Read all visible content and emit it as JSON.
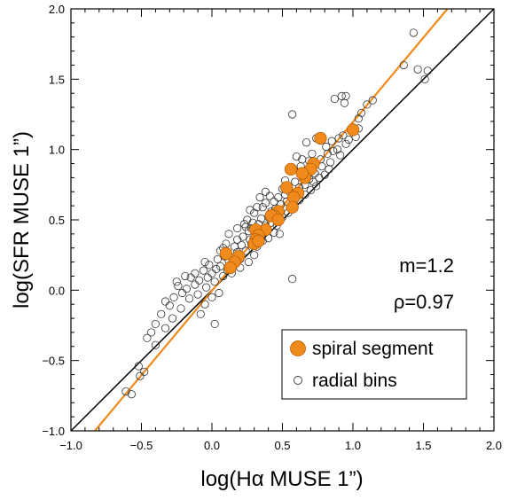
{
  "chart_data": {
    "type": "scatter",
    "xlabel": "log(Hα MUSE 1”)",
    "ylabel": "log(SFR MUSE 1”)",
    "xlim": [
      -1.0,
      2.0
    ],
    "ylim": [
      -1.0,
      2.0
    ],
    "x_ticks": [
      "−1.0",
      "−0.5",
      "0.0",
      "0.5",
      "1.0",
      "1.5",
      "2.0"
    ],
    "y_ticks": [
      "−1.0",
      "−0.5",
      "0.0",
      "0.5",
      "1.0",
      "1.5",
      "2.0"
    ],
    "annotations": {
      "slope": "m=1.2",
      "correlation": "ρ=0.97"
    },
    "legend": {
      "position": "bottom-right",
      "spiral_label": "spiral segment",
      "radial_label": "radial bins"
    },
    "colors": {
      "spiral": "#f08a1c",
      "fit_line": "#f08a1c",
      "one_to_one": "#000000",
      "radial": "#333333"
    },
    "lines": [
      {
        "kind": "one-to-one",
        "x": [
          -1.0,
          2.0
        ],
        "y": [
          -1.0,
          2.0
        ]
      },
      {
        "kind": "fit",
        "slope": 1.2,
        "x": [
          -0.83,
          1.67
        ],
        "y": [
          -1.0,
          2.0
        ]
      }
    ],
    "series": [
      {
        "name": "spiral segment",
        "points": [
          [
            1.0,
            1.14
          ],
          [
            0.77,
            1.08
          ],
          [
            0.72,
            0.9
          ],
          [
            0.7,
            0.86
          ],
          [
            0.66,
            0.8
          ],
          [
            0.64,
            0.83
          ],
          [
            0.56,
            0.86
          ],
          [
            0.53,
            0.73
          ],
          [
            0.61,
            0.69
          ],
          [
            0.58,
            0.66
          ],
          [
            0.57,
            0.59
          ],
          [
            0.47,
            0.56
          ],
          [
            0.44,
            0.53
          ],
          [
            0.42,
            0.53
          ],
          [
            0.47,
            0.5
          ],
          [
            0.38,
            0.43
          ],
          [
            0.31,
            0.43
          ],
          [
            0.33,
            0.39
          ],
          [
            0.31,
            0.36
          ],
          [
            0.3,
            0.33
          ],
          [
            0.33,
            0.35
          ],
          [
            0.19,
            0.24
          ],
          [
            0.16,
            0.2
          ],
          [
            0.13,
            0.16
          ],
          [
            0.1,
            0.26
          ]
        ]
      },
      {
        "name": "radial bins",
        "points": [
          [
            1.43,
            1.83
          ],
          [
            1.36,
            1.6
          ],
          [
            1.46,
            1.57
          ],
          [
            1.53,
            1.56
          ],
          [
            1.51,
            1.5
          ],
          [
            1.14,
            1.35
          ],
          [
            1.1,
            1.32
          ],
          [
            1.06,
            1.26
          ],
          [
            0.87,
            1.36
          ],
          [
            0.92,
            1.38
          ],
          [
            0.94,
            1.33
          ],
          [
            0.95,
            1.38
          ],
          [
            0.57,
            1.25
          ],
          [
            1.04,
            1.22
          ],
          [
            0.99,
            1.14
          ],
          [
            1.02,
            1.09
          ],
          [
            1.04,
            1.15
          ],
          [
            0.93,
            1.1
          ],
          [
            0.9,
            1.08
          ],
          [
            0.85,
            1.06
          ],
          [
            0.81,
            1.02
          ],
          [
            0.74,
            1.08
          ],
          [
            0.67,
            1.05
          ],
          [
            0.71,
            0.97
          ],
          [
            0.64,
            0.93
          ],
          [
            0.6,
            0.95
          ],
          [
            0.69,
            0.92
          ],
          [
            0.78,
            0.88
          ],
          [
            0.83,
            0.86
          ],
          [
            0.8,
            0.82
          ],
          [
            0.76,
            0.8
          ],
          [
            0.72,
            0.77
          ],
          [
            0.69,
            0.79
          ],
          [
            0.66,
            0.75
          ],
          [
            0.62,
            0.73
          ],
          [
            0.59,
            0.77
          ],
          [
            0.55,
            0.7
          ],
          [
            0.52,
            0.68
          ],
          [
            0.5,
            0.72
          ],
          [
            0.47,
            0.66
          ],
          [
            0.44,
            0.63
          ],
          [
            0.41,
            0.67
          ],
          [
            0.38,
            0.62
          ],
          [
            0.36,
            0.59
          ],
          [
            0.34,
            0.66
          ],
          [
            0.38,
            0.7
          ],
          [
            0.32,
            0.59
          ],
          [
            0.3,
            0.55
          ],
          [
            0.27,
            0.57
          ],
          [
            0.25,
            0.5
          ],
          [
            0.23,
            0.47
          ],
          [
            0.29,
            0.48
          ],
          [
            0.35,
            0.51
          ],
          [
            0.42,
            0.48
          ],
          [
            0.46,
            0.46
          ],
          [
            0.5,
            0.52
          ],
          [
            0.54,
            0.55
          ],
          [
            0.58,
            0.61
          ],
          [
            0.62,
            0.64
          ],
          [
            0.66,
            0.68
          ],
          [
            0.7,
            0.71
          ],
          [
            0.74,
            0.74
          ],
          [
            0.48,
            0.4
          ],
          [
            0.44,
            0.41
          ],
          [
            0.4,
            0.37
          ],
          [
            0.36,
            0.35
          ],
          [
            0.32,
            0.31
          ],
          [
            0.28,
            0.33
          ],
          [
            0.24,
            0.28
          ],
          [
            0.21,
            0.32
          ],
          [
            0.18,
            0.27
          ],
          [
            0.15,
            0.23
          ],
          [
            0.12,
            0.21
          ],
          [
            0.09,
            0.24
          ],
          [
            0.06,
            0.17
          ],
          [
            0.03,
            0.15
          ],
          [
            0.0,
            0.12
          ],
          [
            -0.03,
            0.09
          ],
          [
            -0.06,
            0.14
          ],
          [
            -0.09,
            0.07
          ],
          [
            -0.12,
            0.04
          ],
          [
            -0.15,
            0.09
          ],
          [
            -0.18,
            0.01
          ],
          [
            -0.21,
            -0.02
          ],
          [
            -0.24,
            0.03
          ],
          [
            -0.27,
            -0.05
          ],
          [
            -0.3,
            -0.11
          ],
          [
            -0.33,
            -0.08
          ],
          [
            -0.36,
            -0.17
          ],
          [
            -0.4,
            -0.24
          ],
          [
            -0.43,
            -0.3
          ],
          [
            -0.46,
            -0.34
          ],
          [
            -0.4,
            -0.39
          ],
          [
            -0.48,
            -0.58
          ],
          [
            -0.51,
            -0.61
          ],
          [
            -0.52,
            -0.54
          ],
          [
            -0.61,
            -0.72
          ],
          [
            -0.57,
            -0.74
          ],
          [
            -0.33,
            -0.27
          ],
          [
            -0.28,
            -0.2
          ],
          [
            -0.22,
            -0.13
          ],
          [
            -0.16,
            -0.06
          ],
          [
            -0.1,
            -0.03
          ],
          [
            -0.04,
            0.02
          ],
          [
            0.02,
            0.06
          ],
          [
            0.08,
            0.1
          ],
          [
            0.14,
            0.12
          ],
          [
            0.2,
            0.16
          ],
          [
            0.26,
            0.2
          ],
          [
            0.3,
            0.25
          ],
          [
            0.05,
            -0.02
          ],
          [
            0.0,
            -0.05
          ],
          [
            -0.05,
            -0.1
          ],
          [
            -0.08,
            -0.17
          ],
          [
            0.02,
            -0.24
          ],
          [
            0.57,
            0.08
          ],
          [
            0.12,
            0.4
          ],
          [
            0.18,
            0.36
          ],
          [
            0.22,
            0.38
          ],
          [
            0.26,
            0.42
          ],
          [
            0.16,
            0.31
          ],
          [
            0.1,
            0.33
          ],
          [
            0.06,
            0.28
          ],
          [
            0.04,
            0.22
          ],
          [
            0.08,
            0.3
          ],
          [
            0.34,
            0.43
          ],
          [
            0.38,
            0.46
          ],
          [
            0.42,
            0.56
          ],
          [
            0.45,
            0.58
          ],
          [
            0.49,
            0.61
          ],
          [
            0.53,
            0.63
          ],
          [
            0.57,
            0.67
          ],
          [
            0.52,
            0.78
          ],
          [
            0.58,
            0.86
          ],
          [
            0.63,
            0.88
          ],
          [
            0.68,
            0.84
          ],
          [
            0.73,
            0.83
          ],
          [
            0.77,
            0.93
          ],
          [
            0.82,
            0.97
          ],
          [
            0.86,
            0.99
          ],
          [
            0.89,
            1.0
          ],
          [
            0.95,
            1.04
          ],
          [
            0.97,
            1.07
          ],
          [
            0.91,
            0.96
          ],
          [
            0.84,
            0.91
          ],
          [
            0.18,
            0.44
          ],
          [
            0.24,
            0.45
          ],
          [
            0.28,
            0.44
          ],
          [
            0.33,
            0.47
          ],
          [
            0.4,
            0.52
          ],
          [
            0.36,
            0.4
          ],
          [
            0.27,
            0.36
          ],
          [
            0.2,
            0.22
          ],
          [
            0.14,
            0.18
          ],
          [
            0.11,
            0.14
          ],
          [
            -0.02,
            0.18
          ],
          [
            -0.05,
            0.2
          ],
          [
            -0.12,
            0.12
          ],
          [
            -0.19,
            0.1
          ],
          [
            -0.25,
            0.06
          ]
        ]
      }
    ]
  }
}
